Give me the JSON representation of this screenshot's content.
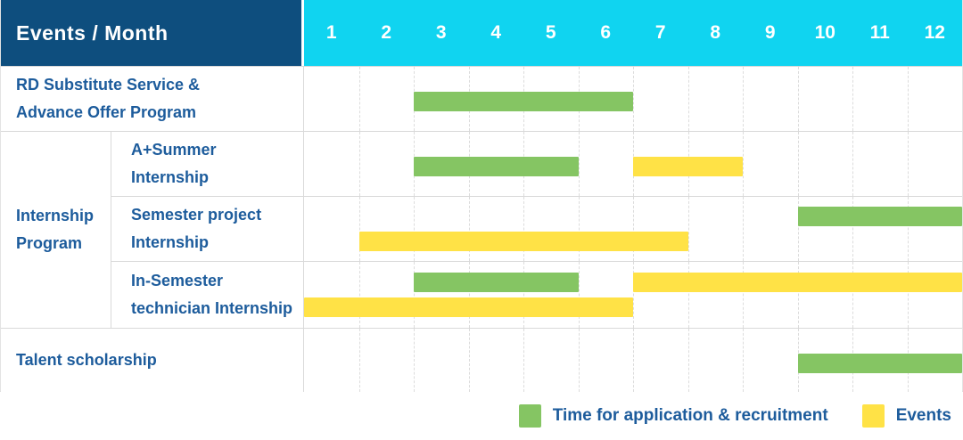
{
  "header": {
    "title": "Events / Month",
    "months": [
      "1",
      "2",
      "3",
      "4",
      "5",
      "6",
      "7",
      "8",
      "9",
      "10",
      "11",
      "12"
    ]
  },
  "colors": {
    "header_bg": "#0E4E7E",
    "months_bg": "#10D4F0",
    "green": "#85C563",
    "yellow": "#FFE246",
    "label_text": "#1D5C9C",
    "grid_line": "#DCDCDC"
  },
  "group_label": "Internship\nProgram",
  "legend": {
    "items": [
      {
        "label": "Time for application & recruitment",
        "color": "green"
      },
      {
        "label": "Events",
        "color": "yellow"
      }
    ]
  },
  "chart_data": {
    "type": "bar",
    "variant": "gantt",
    "title": "Events / Month",
    "x_axis": {
      "label": "Month",
      "ticks": [
        1,
        2,
        3,
        4,
        5,
        6,
        7,
        8,
        9,
        10,
        11,
        12
      ],
      "range": [
        1,
        12
      ]
    },
    "grid": true,
    "legend_position": "bottom-right",
    "series_legend": [
      {
        "name": "Time for application & recruitment",
        "color": "#85C563"
      },
      {
        "name": "Events",
        "color": "#FFE246"
      }
    ],
    "rows": [
      {
        "label": "RD Substitute Service &\nAdvance Offer Program",
        "group": null,
        "lines": [
          [
            {
              "series": "Time for application & recruitment",
              "color": "green",
              "start_month": 3,
              "end_month": 6
            }
          ]
        ]
      },
      {
        "label": "A+Summer\nInternship",
        "group": "Internship Program",
        "lines": [
          [
            {
              "series": "Time for application & recruitment",
              "color": "green",
              "start_month": 3,
              "end_month": 5
            },
            {
              "series": "Events",
              "color": "yellow",
              "start_month": 7,
              "end_month": 8
            }
          ]
        ]
      },
      {
        "label": "Semester project\nInternship",
        "group": "Internship Program",
        "lines": [
          [
            {
              "series": "Time for application & recruitment",
              "color": "green",
              "start_month": 10,
              "end_month": 12
            }
          ],
          [
            {
              "series": "Events",
              "color": "yellow",
              "start_month": 2,
              "end_month": 7
            }
          ]
        ]
      },
      {
        "label": "In-Semester\ntechnician Internship",
        "group": "Internship Program",
        "lines": [
          [
            {
              "series": "Time for application & recruitment",
              "color": "green",
              "start_month": 3,
              "end_month": 5
            },
            {
              "series": "Events",
              "color": "yellow",
              "start_month": 7,
              "end_month": 12
            }
          ],
          [
            {
              "series": "Events",
              "color": "yellow",
              "start_month": 1,
              "end_month": 6
            }
          ]
        ]
      },
      {
        "label": "Talent scholarship",
        "group": null,
        "lines": [
          [
            {
              "series": "Time for application & recruitment",
              "color": "green",
              "start_month": 10,
              "end_month": 12
            }
          ]
        ]
      }
    ]
  }
}
